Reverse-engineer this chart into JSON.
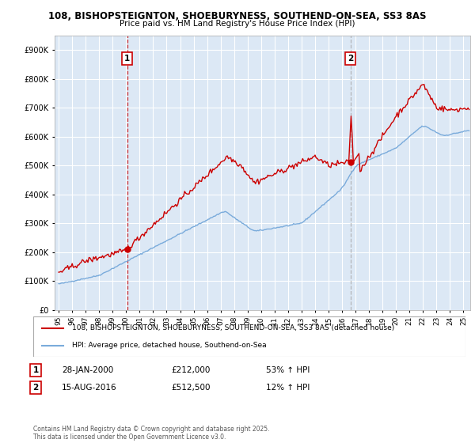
{
  "title_line1": "108, BISHOPSTEIGNTON, SHOEBURYNESS, SOUTHEND-ON-SEA, SS3 8AS",
  "title_line2": "Price paid vs. HM Land Registry's House Price Index (HPI)",
  "legend_line1": "108, BISHOPSTEIGNTON, SHOEBURYNESS, SOUTHEND-ON-SEA, SS3 8AS (detached house)",
  "legend_line2": "HPI: Average price, detached house, Southend-on-Sea",
  "annotation1_label": "1",
  "annotation1_date": "28-JAN-2000",
  "annotation1_price": "£212,000",
  "annotation1_hpi": "53% ↑ HPI",
  "annotation2_label": "2",
  "annotation2_date": "15-AUG-2016",
  "annotation2_price": "£512,500",
  "annotation2_hpi": "12% ↑ HPI",
  "footer": "Contains HM Land Registry data © Crown copyright and database right 2025.\nThis data is licensed under the Open Government Licence v3.0.",
  "property_color": "#cc0000",
  "hpi_color": "#7aabdb",
  "vline1_color": "#cc0000",
  "vline2_color": "#aaaaaa",
  "dot_color": "#cc0000",
  "background_color": "#ffffff",
  "chart_bg_color": "#dce8f5",
  "grid_color": "#ffffff",
  "ylim": [
    0,
    950000
  ],
  "yticks": [
    0,
    100000,
    200000,
    300000,
    400000,
    500000,
    600000,
    700000,
    800000,
    900000
  ],
  "xlim_start": 1994.7,
  "xlim_end": 2025.5,
  "sale1_year": 2000.07,
  "sale1_price": 212000,
  "sale2_year": 2016.62,
  "sale2_price": 512500,
  "vline1_year": 2000.07,
  "vline2_year": 2016.62
}
